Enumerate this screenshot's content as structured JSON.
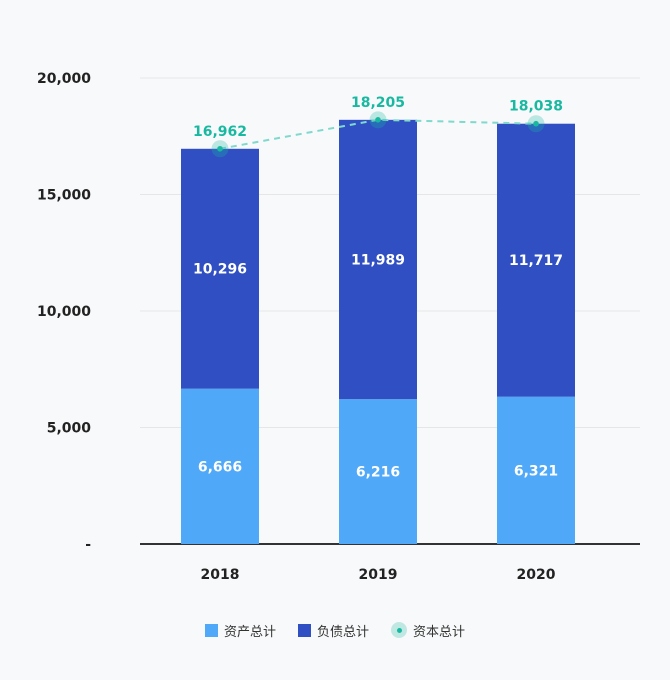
{
  "chart_data": {
    "type": "bar",
    "stacked": true,
    "categories": [
      "2018",
      "2019",
      "2020"
    ],
    "ylim": [
      0,
      20000
    ],
    "yticks": [
      {
        "value": 0,
        "label": "-"
      },
      {
        "value": 5000,
        "label": "5,000"
      },
      {
        "value": 10000,
        "label": "10,000"
      },
      {
        "value": 15000,
        "label": "15,000"
      },
      {
        "value": 20000,
        "label": "20,000"
      }
    ],
    "grid": true,
    "legend_position": "bottom",
    "series": [
      {
        "name": "资产总计",
        "type": "bar",
        "color": "#4fa8f8",
        "values": [
          6666,
          6216,
          6321
        ],
        "labels": [
          "6,666",
          "6,216",
          "6,321"
        ]
      },
      {
        "name": "负债总计",
        "type": "bar",
        "color": "#2f4fc2",
        "values": [
          10296,
          11989,
          11717
        ],
        "labels": [
          "10,296",
          "11,989",
          "11,717"
        ]
      },
      {
        "name": "资本总计",
        "type": "line",
        "style": "dashed",
        "color": "#19b9a1",
        "values": [
          16962,
          18205,
          18038
        ],
        "labels": [
          "16,962",
          "18,205",
          "18,038"
        ]
      }
    ]
  }
}
